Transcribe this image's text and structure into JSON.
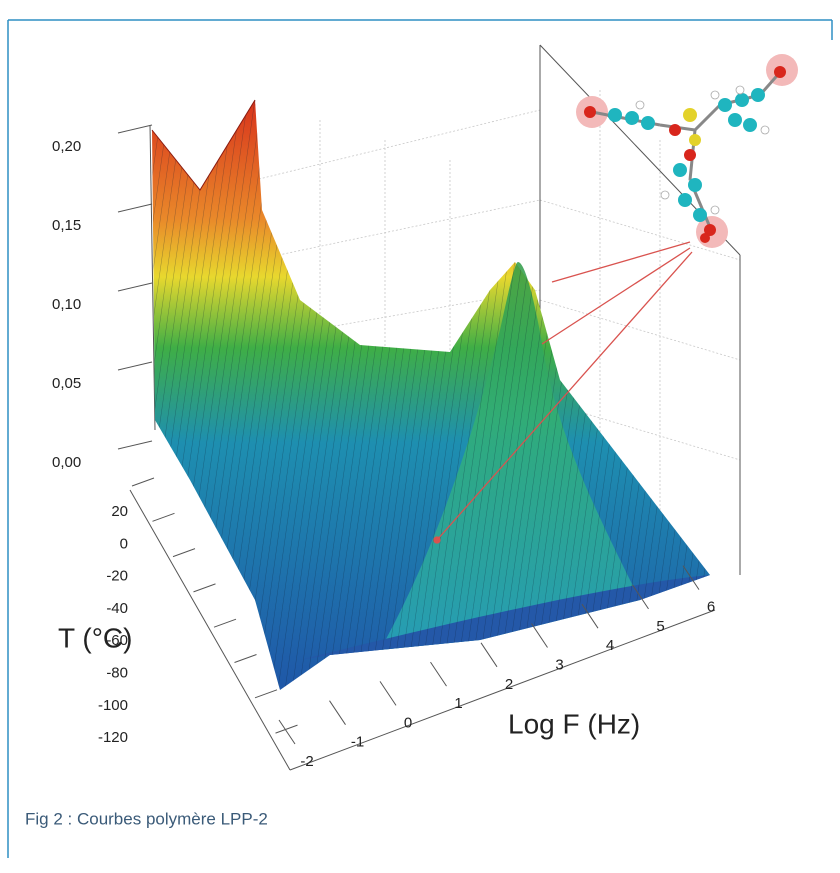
{
  "figure": {
    "z_ticks": [
      "0,20",
      "0,15",
      "0,10",
      "0,05",
      "0,00"
    ],
    "t_ticks": [
      "20",
      "0",
      "-20",
      "-40",
      "-60",
      "-80",
      "-100",
      "-120"
    ],
    "t_label": "T (°C)",
    "f_ticks": [
      "-2",
      "-1",
      "0",
      "1",
      "2",
      "3",
      "4",
      "5",
      "6"
    ],
    "f_label": "Log F (Hz)"
  },
  "caption": "Fig 2 : Courbes polymère LPP-2"
}
